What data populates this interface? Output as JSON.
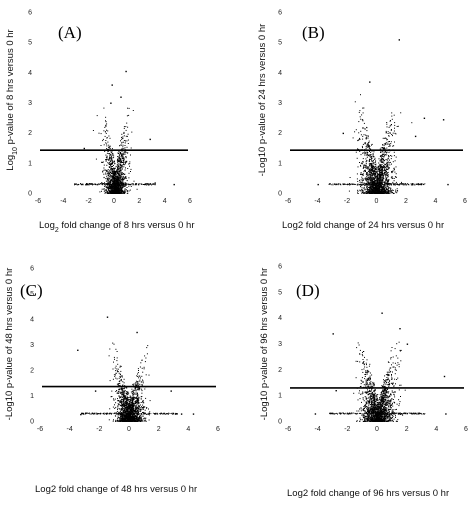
{
  "chart_data": [
    {
      "type": "scatter",
      "panel_label": "(A)",
      "xlabel_parts": [
        "Log",
        "2",
        " fold change of 8 hrs versus 0 hr"
      ],
      "ylabel_parts": [
        "Log",
        "10",
        " p-value of 8 hrs versus 0 hr"
      ],
      "xlim": [
        -6,
        6
      ],
      "ylim": [
        0,
        6
      ],
      "x_ticks": [
        -6,
        -4,
        -2,
        0,
        2,
        4,
        6
      ],
      "y_ticks": [
        0,
        1,
        2,
        3,
        4,
        5,
        6
      ],
      "threshold_y": 1.42,
      "cloud": {
        "center_x": 0.1,
        "spread_x": 0.8,
        "peak_y": 3.0,
        "n_points": 1700
      },
      "outliers": [
        [
          0.9,
          4.05
        ],
        [
          -0.2,
          3.6
        ],
        [
          0.5,
          3.2
        ],
        [
          -0.3,
          3.0
        ],
        [
          2.8,
          1.8
        ],
        [
          -2.4,
          1.5
        ],
        [
          3.2,
          0.35
        ],
        [
          4.7,
          0.3
        ]
      ],
      "grid": false
    },
    {
      "type": "scatter",
      "panel_label": "(B)",
      "xlabel_parts": [
        "Log2 fold change of 24 hrs versus 0 hr"
      ],
      "ylabel_parts": [
        "-Log10 p-value of 24 hrs versus 0 hr"
      ],
      "xlim": [
        -6,
        6
      ],
      "ylim": [
        0,
        6
      ],
      "x_ticks": [
        -6,
        -4,
        -2,
        0,
        2,
        4,
        6
      ],
      "y_ticks": [
        0,
        1,
        2,
        3,
        4,
        5,
        6
      ],
      "threshold_y": 1.42,
      "cloud": {
        "center_x": 0.0,
        "spread_x": 1.0,
        "peak_y": 3.4,
        "n_points": 1900
      },
      "outliers": [
        [
          1.5,
          5.1
        ],
        [
          -0.5,
          3.7
        ],
        [
          3.2,
          2.5
        ],
        [
          -2.3,
          2.0
        ],
        [
          2.6,
          1.9
        ],
        [
          4.5,
          2.45
        ],
        [
          -4.0,
          0.3
        ],
        [
          4.8,
          0.3
        ]
      ],
      "grid": false
    },
    {
      "type": "scatter",
      "panel_label": "(C)",
      "xlabel_parts": [
        "Log2 fold change of 48 hrs versus 0 hr"
      ],
      "ylabel_parts": [
        "-Log10 p-value of 48 hrs versus 0 hr"
      ],
      "xlim": [
        -6,
        6
      ],
      "ylim": [
        0,
        6
      ],
      "x_ticks": [
        -6,
        -4,
        -2,
        0,
        2,
        4,
        6
      ],
      "y_ticks": [
        0,
        1,
        2,
        3,
        4,
        5,
        6
      ],
      "threshold_y": 1.35,
      "cloud": {
        "center_x": 0.0,
        "spread_x": 0.85,
        "peak_y": 3.3,
        "n_points": 1800
      },
      "outliers": [
        [
          -1.5,
          4.1
        ],
        [
          0.5,
          3.5
        ],
        [
          -3.5,
          2.8
        ],
        [
          2.8,
          1.2
        ],
        [
          -2.3,
          1.2
        ],
        [
          3.5,
          0.3
        ],
        [
          4.3,
          0.3
        ],
        [
          -3.3,
          0.28
        ]
      ],
      "grid": false
    },
    {
      "type": "scatter",
      "panel_label": "(D)",
      "xlabel_parts": [
        "Log2 fold change of 96 hrs versus 0 hr"
      ],
      "ylabel_parts": [
        "-Log10 p-value of 96 hrs versus 0 hr"
      ],
      "xlim": [
        -6,
        6
      ],
      "ylim": [
        0,
        6
      ],
      "x_ticks": [
        -6,
        -4,
        -2,
        0,
        2,
        4,
        6
      ],
      "y_ticks": [
        0,
        1,
        2,
        3,
        4,
        5,
        6
      ],
      "threshold_y": 1.28,
      "cloud": {
        "center_x": 0.05,
        "spread_x": 1.0,
        "peak_y": 3.2,
        "n_points": 1900
      },
      "outliers": [
        [
          -3.0,
          3.4
        ],
        [
          0.3,
          4.2
        ],
        [
          1.5,
          3.6
        ],
        [
          2.0,
          3.0
        ],
        [
          4.5,
          1.75
        ],
        [
          -2.8,
          1.2
        ],
        [
          4.6,
          0.3
        ],
        [
          -4.2,
          0.3
        ]
      ],
      "grid": false
    }
  ]
}
